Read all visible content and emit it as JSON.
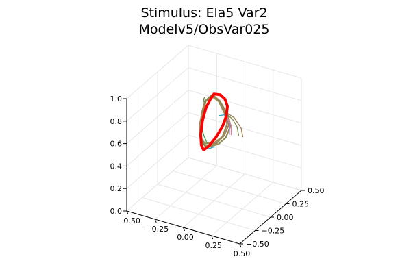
{
  "chart_data": {
    "type": "line",
    "title": "Stimulus: Ela5 Var2",
    "subtitle": "Modelv5/ObsVar025",
    "xlim": [
      -0.5,
      0.5
    ],
    "ylim": [
      -0.5,
      0.5
    ],
    "zlim": [
      0,
      1
    ],
    "x_ticks": [
      -0.5,
      -0.25,
      0,
      0.25,
      0.5
    ],
    "x_tick_labels": [
      "−0.50",
      "−0.25",
      "0.00",
      "0.25",
      "0.50"
    ],
    "y_ticks": [
      -0.5,
      -0.25,
      0,
      0.25,
      0.5
    ],
    "y_tick_labels": [
      "−0.50",
      "−0.25",
      "0.00",
      "0.25",
      "0.50"
    ],
    "z_ticks": [
      0,
      0.2,
      0.4,
      0.6,
      0.8,
      1.0
    ],
    "z_tick_labels": [
      "0.0",
      "0.2",
      "0.4",
      "0.6",
      "0.8",
      "1.0"
    ],
    "grid": true,
    "legend": "none",
    "stimulus": {
      "color": "#ff0000",
      "points": [
        [
          0.0,
          0.0,
          0.95
        ],
        [
          0.04,
          0.03,
          0.94
        ],
        [
          0.07,
          0.05,
          0.9
        ],
        [
          0.08,
          0.07,
          0.83
        ],
        [
          0.07,
          0.07,
          0.74
        ],
        [
          0.04,
          0.06,
          0.64
        ],
        [
          0.0,
          0.03,
          0.55
        ],
        [
          -0.04,
          -0.01,
          0.48
        ],
        [
          -0.07,
          -0.04,
          0.45
        ],
        [
          -0.08,
          -0.06,
          0.5
        ],
        [
          -0.08,
          -0.07,
          0.6
        ],
        [
          -0.07,
          -0.06,
          0.72
        ],
        [
          -0.05,
          -0.04,
          0.83
        ],
        [
          -0.02,
          -0.02,
          0.91
        ],
        [
          0.0,
          0.0,
          0.95
        ]
      ]
    },
    "series": [
      {
        "color": "#a08862",
        "points": [
          [
            -0.1,
            0.04,
            0.84
          ],
          [
            -0.05,
            0.06,
            0.9
          ],
          [
            0.03,
            0.03,
            0.88
          ],
          [
            0.1,
            0.01,
            0.8
          ],
          [
            0.12,
            0.02,
            0.7
          ],
          [
            0.1,
            -0.02,
            0.62
          ],
          [
            0.05,
            -0.05,
            0.55
          ],
          [
            -0.03,
            -0.08,
            0.52
          ],
          [
            -0.09,
            -0.06,
            0.56
          ],
          [
            -0.11,
            -0.02,
            0.64
          ],
          [
            -0.12,
            0.02,
            0.74
          ],
          [
            -0.1,
            0.04,
            0.84
          ]
        ]
      },
      {
        "color": "#9b8a5c",
        "points": [
          [
            -0.11,
            0.05,
            0.82
          ],
          [
            -0.06,
            0.07,
            0.88
          ],
          [
            0.02,
            0.04,
            0.87
          ],
          [
            0.09,
            0.0,
            0.81
          ],
          [
            0.11,
            0.01,
            0.71
          ],
          [
            0.09,
            -0.03,
            0.61
          ],
          [
            0.04,
            -0.06,
            0.56
          ],
          [
            -0.04,
            -0.07,
            0.53
          ],
          [
            -0.1,
            -0.05,
            0.57
          ],
          [
            -0.12,
            -0.01,
            0.66
          ],
          [
            -0.11,
            0.05,
            0.82
          ]
        ]
      },
      {
        "color": "#8d8a52",
        "points": [
          [
            -0.09,
            0.03,
            0.85
          ],
          [
            -0.04,
            0.05,
            0.91
          ],
          [
            0.04,
            0.02,
            0.89
          ],
          [
            0.11,
            0.02,
            0.79
          ],
          [
            0.13,
            0.03,
            0.69
          ],
          [
            0.11,
            -0.01,
            0.6
          ],
          [
            0.06,
            -0.04,
            0.54
          ],
          [
            -0.02,
            -0.09,
            0.51
          ],
          [
            -0.08,
            -0.07,
            0.55
          ],
          [
            -0.1,
            -0.03,
            0.63
          ],
          [
            -0.09,
            0.03,
            0.85
          ]
        ]
      },
      {
        "color": "#7c8a48",
        "points": [
          [
            0.1,
            0.01,
            0.8
          ],
          [
            0.14,
            0.04,
            0.75
          ],
          [
            0.17,
            0.06,
            0.68
          ],
          [
            0.18,
            0.07,
            0.6
          ]
        ]
      },
      {
        "color": "#9a7a50",
        "points": [
          [
            0.1,
            0.0,
            0.82
          ],
          [
            0.15,
            0.05,
            0.76
          ],
          [
            0.19,
            0.09,
            0.66
          ],
          [
            0.2,
            0.1,
            0.58
          ]
        ]
      },
      {
        "color": "#1b9fb7",
        "points": [
          [
            -0.05,
            -0.1,
            0.49
          ],
          [
            -0.01,
            -0.06,
            0.49
          ],
          [
            0.02,
            -0.03,
            0.5
          ]
        ]
      },
      {
        "color": "#20a7c4",
        "points": [
          [
            0.02,
            0.05,
            0.74
          ],
          [
            0.06,
            0.07,
            0.75
          ],
          [
            0.08,
            0.08,
            0.74
          ]
        ]
      },
      {
        "color": "#a68ac8",
        "points": [
          [
            0.08,
            0.07,
            0.73
          ],
          [
            0.11,
            0.05,
            0.68
          ],
          [
            0.12,
            0.03,
            0.61
          ]
        ]
      },
      {
        "color": "#d7839b",
        "points": [
          [
            0.09,
            0.05,
            0.74
          ],
          [
            0.13,
            0.04,
            0.69
          ],
          [
            0.14,
            0.02,
            0.62
          ]
        ]
      },
      {
        "color": "#3d9a4e",
        "points": [
          [
            -0.08,
            -0.06,
            0.66
          ],
          [
            -0.06,
            -0.05,
            0.58
          ],
          [
            -0.04,
            -0.04,
            0.52
          ]
        ]
      },
      {
        "color": "#6f8e3c",
        "points": [
          [
            -0.1,
            0.02,
            0.84
          ],
          [
            -0.09,
            0.0,
            0.88
          ],
          [
            -0.08,
            -0.01,
            0.9
          ]
        ]
      }
    ]
  }
}
